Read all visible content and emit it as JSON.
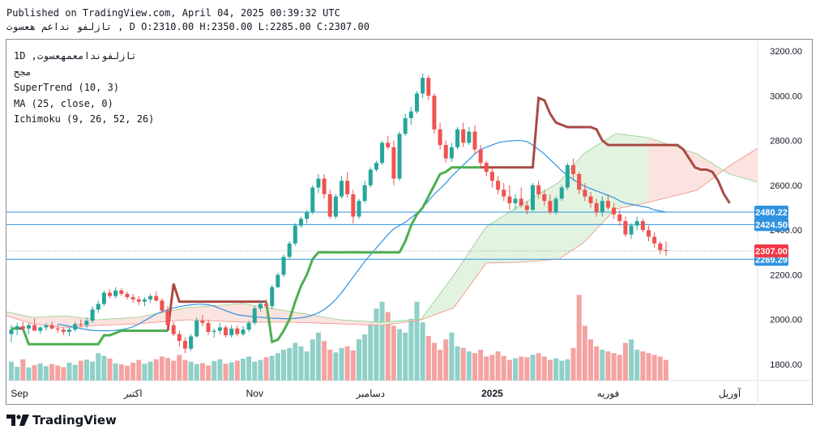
{
  "header": {
    "published": "Published on TradingView.com, April 04, 2025 00:39:32 UTC",
    "symbol_line": "تازلفو نداعم هعسوت , D O:2310.00 H:2350.00 L:2285.00 C:2307.00"
  },
  "legend": {
    "symbol": "1D ,تازلفوندامعمهعسوت",
    "sub": "مجح",
    "supertrend": "SuperTrend (10, 3)",
    "ma": "MA (25, close, 0)",
    "ichimoku": "Ichimoku (9, 26, 52, 26)"
  },
  "branding": {
    "logo_text": "TradingView"
  },
  "colors": {
    "up": "#26a69a",
    "down": "#ef5350",
    "vol_up": "#8fd0c8",
    "vol_down": "#f4a3a1",
    "supertrend_up": "#4caf50",
    "supertrend_down": "#a84b45",
    "ma": "#2f93e0",
    "cloud_bull": "#dff2dc",
    "cloud_bear": "#fbe0dc",
    "hline": "#2f93e0",
    "price_tag": "#f23645",
    "level_tag": "#2f93e0"
  },
  "chart_data": {
    "type": "candlestick",
    "y_axis": {
      "range": [
        1700,
        3250
      ],
      "ticks": [
        1800,
        2000,
        2200,
        2400,
        2600,
        2800,
        3000,
        3200
      ]
    },
    "x_axis": {
      "labels": [
        {
          "text": "Sep",
          "bar": 0
        },
        {
          "text": "اكتبر",
          "bar": 21
        },
        {
          "text": "Nov",
          "bar": 42
        },
        {
          "text": "دسامبر",
          "bar": 62
        },
        {
          "text": "2025",
          "bar": 83
        },
        {
          "text": "فوريه",
          "bar": 103
        },
        {
          "text": "آوريل",
          "bar": 124
        }
      ]
    },
    "current_price": 2307.0,
    "horizontal_levels": [
      2480.22,
      2424.5,
      2269.29
    ],
    "candles": [
      [
        1935,
        1975,
        1900,
        1955
      ],
      [
        1955,
        1985,
        1930,
        1970
      ],
      [
        1970,
        1990,
        1950,
        1960
      ],
      [
        1960,
        1985,
        1935,
        1975
      ],
      [
        1975,
        2005,
        1960,
        1950
      ],
      [
        1950,
        1970,
        1935,
        1965
      ],
      [
        1965,
        1985,
        1950,
        1975
      ],
      [
        1975,
        1990,
        1955,
        1960
      ],
      [
        1960,
        1975,
        1940,
        1955
      ],
      [
        1955,
        1965,
        1930,
        1945
      ],
      [
        1945,
        1965,
        1925,
        1955
      ],
      [
        1955,
        1990,
        1945,
        1980
      ],
      [
        1980,
        2000,
        1965,
        1975
      ],
      [
        1975,
        2010,
        1960,
        1995
      ],
      [
        1995,
        2060,
        1985,
        2045
      ],
      [
        2045,
        2085,
        2030,
        2070
      ],
      [
        2070,
        2130,
        2060,
        2120
      ],
      [
        2120,
        2135,
        2095,
        2105
      ],
      [
        2105,
        2145,
        2095,
        2130
      ],
      [
        2130,
        2140,
        2105,
        2115
      ],
      [
        2115,
        2125,
        2090,
        2100
      ],
      [
        2100,
        2115,
        2075,
        2090
      ],
      [
        2090,
        2105,
        2065,
        2080
      ],
      [
        2080,
        2100,
        2060,
        2090
      ],
      [
        2090,
        2115,
        2075,
        2105
      ],
      [
        2105,
        2125,
        2080,
        2085
      ],
      [
        2085,
        2095,
        2030,
        2040
      ],
      [
        2040,
        2060,
        1955,
        1975
      ],
      [
        1975,
        1990,
        1925,
        1935
      ],
      [
        1935,
        1950,
        1880,
        1905
      ],
      [
        1905,
        1920,
        1850,
        1870
      ],
      [
        1870,
        1935,
        1860,
        1925
      ],
      [
        1925,
        2010,
        1920,
        1995
      ],
      [
        1995,
        2020,
        1970,
        1985
      ],
      [
        1985,
        2000,
        1930,
        1945
      ],
      [
        1945,
        1960,
        1920,
        1950
      ],
      [
        1950,
        1985,
        1935,
        1965
      ],
      [
        1965,
        1975,
        1920,
        1930
      ],
      [
        1930,
        1975,
        1920,
        1960
      ],
      [
        1960,
        1975,
        1925,
        1935
      ],
      [
        1935,
        1970,
        1925,
        1955
      ],
      [
        1955,
        1995,
        1945,
        1985
      ],
      [
        1985,
        2060,
        1975,
        2050
      ],
      [
        2050,
        2085,
        2035,
        2070
      ],
      [
        2070,
        2090,
        2050,
        2060
      ],
      [
        2060,
        2155,
        2045,
        2145
      ],
      [
        2145,
        2210,
        2140,
        2200
      ],
      [
        2200,
        2290,
        2190,
        2280
      ],
      [
        2280,
        2350,
        2270,
        2340
      ],
      [
        2340,
        2430,
        2330,
        2420
      ],
      [
        2420,
        2460,
        2410,
        2450
      ],
      [
        2450,
        2490,
        2430,
        2480
      ],
      [
        2480,
        2600,
        2470,
        2590
      ],
      [
        2590,
        2650,
        2565,
        2630
      ],
      [
        2630,
        2650,
        2540,
        2560
      ],
      [
        2560,
        2580,
        2450,
        2460
      ],
      [
        2460,
        2560,
        2450,
        2550
      ],
      [
        2550,
        2640,
        2540,
        2620
      ],
      [
        2620,
        2660,
        2545,
        2560
      ],
      [
        2560,
        2580,
        2430,
        2460
      ],
      [
        2460,
        2540,
        2450,
        2530
      ],
      [
        2530,
        2620,
        2520,
        2600
      ],
      [
        2600,
        2680,
        2590,
        2670
      ],
      [
        2670,
        2710,
        2660,
        2700
      ],
      [
        2700,
        2800,
        2690,
        2790
      ],
      [
        2790,
        2820,
        2760,
        2770
      ],
      [
        2770,
        2800,
        2600,
        2630
      ],
      [
        2630,
        2840,
        2620,
        2830
      ],
      [
        2830,
        2920,
        2820,
        2900
      ],
      [
        2900,
        2950,
        2870,
        2930
      ],
      [
        2930,
        3020,
        2920,
        3010
      ],
      [
        3010,
        3100,
        2990,
        3080
      ],
      [
        3080,
        3090,
        2980,
        3000
      ],
      [
        3000,
        3010,
        2830,
        2850
      ],
      [
        2850,
        2880,
        2760,
        2780
      ],
      [
        2780,
        2800,
        2700,
        2720
      ],
      [
        2720,
        2790,
        2705,
        2770
      ],
      [
        2770,
        2860,
        2760,
        2850
      ],
      [
        2850,
        2880,
        2770,
        2790
      ],
      [
        2790,
        2860,
        2780,
        2840
      ],
      [
        2840,
        2870,
        2740,
        2760
      ],
      [
        2760,
        2780,
        2680,
        2700
      ],
      [
        2700,
        2710,
        2640,
        2660
      ],
      [
        2660,
        2680,
        2590,
        2620
      ],
      [
        2620,
        2640,
        2560,
        2580
      ],
      [
        2580,
        2610,
        2530,
        2550
      ],
      [
        2550,
        2600,
        2490,
        2520
      ],
      [
        2520,
        2560,
        2490,
        2540
      ],
      [
        2540,
        2590,
        2500,
        2510
      ],
      [
        2510,
        2530,
        2470,
        2490
      ],
      [
        2490,
        2610,
        2485,
        2600
      ],
      [
        2600,
        2620,
        2540,
        2560
      ],
      [
        2560,
        2580,
        2510,
        2530
      ],
      [
        2530,
        2560,
        2470,
        2480
      ],
      [
        2480,
        2550,
        2470,
        2540
      ],
      [
        2540,
        2600,
        2530,
        2590
      ],
      [
        2590,
        2700,
        2580,
        2690
      ],
      [
        2690,
        2720,
        2630,
        2650
      ],
      [
        2650,
        2660,
        2560,
        2580
      ],
      [
        2580,
        2610,
        2530,
        2550
      ],
      [
        2550,
        2570,
        2500,
        2520
      ],
      [
        2520,
        2540,
        2460,
        2480
      ],
      [
        2480,
        2550,
        2460,
        2530
      ],
      [
        2530,
        2560,
        2490,
        2500
      ],
      [
        2500,
        2520,
        2450,
        2470
      ],
      [
        2470,
        2490,
        2420,
        2440
      ],
      [
        2440,
        2460,
        2370,
        2380
      ],
      [
        2380,
        2430,
        2360,
        2420
      ],
      [
        2420,
        2460,
        2400,
        2440
      ],
      [
        2440,
        2450,
        2390,
        2400
      ],
      [
        2400,
        2420,
        2350,
        2370
      ],
      [
        2370,
        2390,
        2320,
        2340
      ],
      [
        2340,
        2350,
        2290,
        2310
      ],
      [
        2310,
        2350,
        2285,
        2307
      ]
    ],
    "volume": [
      55,
      40,
      62,
      38,
      45,
      50,
      42,
      48,
      44,
      39,
      52,
      46,
      58,
      61,
      55,
      80,
      72,
      64,
      50,
      47,
      43,
      52,
      60,
      49,
      55,
      62,
      70,
      66,
      58,
      75,
      60,
      55,
      48,
      51,
      44,
      57,
      62,
      49,
      53,
      58,
      64,
      70,
      55,
      60,
      68,
      72,
      80,
      90,
      95,
      110,
      100,
      85,
      120,
      140,
      115,
      90,
      82,
      95,
      100,
      88,
      120,
      135,
      170,
      210,
      230,
      200,
      160,
      150,
      140,
      180,
      230,
      170,
      130,
      110,
      90,
      120,
      140,
      100,
      95,
      85,
      80,
      90,
      70,
      75,
      85,
      72,
      60,
      65,
      70,
      68,
      75,
      80,
      70,
      60,
      65,
      58,
      62,
      95,
      250,
      160,
      120,
      100,
      90,
      85,
      80,
      75,
      110,
      120,
      90,
      85,
      80,
      75,
      70,
      60,
      50,
      40
    ],
    "supertrend": [
      1960,
      1960,
      1960,
      1890,
      1890,
      1890,
      1890,
      1890,
      1890,
      1890,
      1890,
      1890,
      1890,
      1890,
      1890,
      1890,
      1930,
      1930,
      1940,
      1950,
      1950,
      1950,
      1950,
      1950,
      1950,
      1950,
      1950,
      1950,
      2160,
      2080,
      2080,
      2080,
      2080,
      2080,
      2080,
      2080,
      2080,
      2080,
      2080,
      2080,
      2080,
      2080,
      2080,
      2080,
      2080,
      1900,
      1910,
      1950,
      2000,
      2080,
      2150,
      2200,
      2270,
      2300,
      2300,
      2300,
      2300,
      2300,
      2300,
      2300,
      2300,
      2300,
      2300,
      2300,
      2300,
      2300,
      2300,
      2300,
      2350,
      2420,
      2470,
      2500,
      2550,
      2600,
      2650,
      2660,
      2680,
      2680,
      2680,
      2680,
      2680,
      2680,
      2680,
      2680,
      2680,
      2680,
      2680,
      2680,
      2680,
      2680,
      2680,
      2990,
      2980,
      2920,
      2880,
      2870,
      2860,
      2860,
      2860,
      2860,
      2860,
      2850,
      2800,
      2780,
      2780,
      2780,
      2780,
      2780,
      2780,
      2780,
      2780,
      2780,
      2780,
      2780,
      2780,
      2780,
      2760,
      2720,
      2680,
      2670,
      2670,
      2660,
      2620,
      2560,
      2520
    ],
    "ma": [
      1980,
      1975,
      1970,
      1965,
      1960,
      1955,
      1952,
      1950,
      1950,
      1950,
      1952,
      1955,
      1960,
      1968,
      1980,
      1995,
      2010,
      2025,
      2035,
      2045,
      2052,
      2058,
      2062,
      2066,
      2068,
      2068,
      2066,
      2060,
      2050,
      2040,
      2030,
      2022,
      2018,
      2015,
      2012,
      2010,
      2008,
      2006,
      2005,
      2004,
      2004,
      2005,
      2008,
      2012,
      2020,
      2030,
      2045,
      2065,
      2090,
      2120,
      2155,
      2190,
      2225,
      2260,
      2290,
      2320,
      2350,
      2380,
      2405,
      2420,
      2435,
      2455,
      2475,
      2500,
      2530,
      2560,
      2585,
      2610,
      2640,
      2665,
      2690,
      2715,
      2740,
      2760,
      2770,
      2780,
      2790,
      2795,
      2798,
      2800,
      2800,
      2795,
      2780,
      2760,
      2740,
      2715,
      2690,
      2665,
      2645,
      2625,
      2610,
      2595,
      2585,
      2575,
      2565,
      2555,
      2545,
      2530,
      2520,
      2515,
      2510,
      2505,
      2500,
      2490,
      2485,
      2480
    ]
  }
}
